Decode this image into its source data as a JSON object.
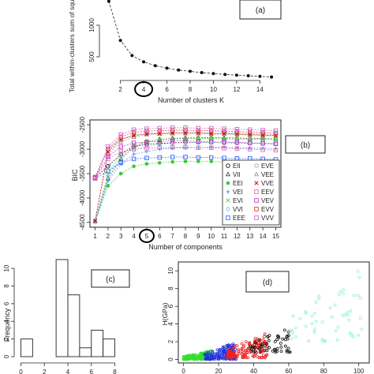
{
  "chart_data": [
    {
      "panel_label": "(a)",
      "type": "line",
      "xlabel": "Number of clusters K",
      "ylabel": "Total within-clusters sum of squares",
      "x": [
        1,
        2,
        3,
        4,
        5,
        6,
        7,
        8,
        9,
        10,
        11,
        12,
        13,
        14,
        15
      ],
      "values": [
        1380,
        760,
        520,
        420,
        360,
        320,
        290,
        270,
        250,
        235,
        220,
        210,
        200,
        190,
        180
      ],
      "xticks": [
        2,
        4,
        6,
        8,
        10,
        12,
        14
      ],
      "yticks": [
        500,
        1000
      ],
      "xlim": [
        0.6,
        15.4
      ],
      "ylim": [
        200,
        1400
      ],
      "highlighted_tick": 4
    },
    {
      "panel_label": "(b)",
      "type": "line",
      "xlabel": "Number of components",
      "ylabel": "BIC",
      "xlim": [
        0.6,
        15.4
      ],
      "ylim": [
        -4600,
        -2400
      ],
      "xticks": [
        1,
        2,
        3,
        4,
        5,
        6,
        7,
        8,
        9,
        10,
        11,
        12,
        13,
        14,
        15
      ],
      "yticks": [
        -4500,
        -4000,
        -3500,
        -3000,
        -2500
      ],
      "highlighted_tick": 5,
      "x": [
        1,
        2,
        3,
        4,
        5,
        6,
        7,
        8,
        9,
        10,
        11,
        12,
        13,
        14,
        15
      ],
      "series": [
        {
          "name": "EII",
          "color": "#111111",
          "marker": "circle",
          "values": [
            -3580,
            -3350,
            -3100,
            -2950,
            -2900,
            -2880,
            -2870,
            -2860,
            -2860,
            -2860,
            -2870,
            -2870,
            -2880,
            -2880,
            -2890
          ]
        },
        {
          "name": "VII",
          "color": "#444444",
          "marker": "triangle",
          "values": [
            -4480,
            -3600,
            -3200,
            -2950,
            -2850,
            -2800,
            -2780,
            -2770,
            -2770,
            -2760,
            -2770,
            -2770,
            -2780,
            -2780,
            -2790
          ]
        },
        {
          "name": "EEI",
          "color": "#33cc33",
          "marker": "dot",
          "values": [
            -4480,
            -3750,
            -3500,
            -3350,
            -3300,
            -3280,
            -3260,
            -3250,
            -3250,
            -3250,
            -3260,
            -3270,
            -3280,
            -3290,
            -3300
          ]
        },
        {
          "name": "VEI",
          "color": "#3399ff",
          "marker": "plus",
          "values": [
            -4500,
            -3650,
            -3300,
            -3100,
            -3050,
            -3000,
            -2980,
            -2970,
            -2970,
            -2960,
            -2960,
            -2970,
            -2980,
            -2980,
            -2990
          ]
        },
        {
          "name": "EVI",
          "color": "#55dd33",
          "marker": "cross",
          "values": [
            -4480,
            -3500,
            -3100,
            -2900,
            -2850,
            -2800,
            -2790,
            -2790,
            -2780,
            -2780,
            -2790,
            -2790,
            -2800,
            -2800,
            -2810
          ]
        },
        {
          "name": "VVI",
          "color": "#88ccee",
          "marker": "diamond",
          "values": [
            -4470,
            -3550,
            -3150,
            -3000,
            -2950,
            -2900,
            -2880,
            -2870,
            -2860,
            -2860,
            -2870,
            -2870,
            -2880,
            -2880,
            -2890
          ]
        },
        {
          "name": "EEE",
          "color": "#3366ff",
          "marker": "square",
          "values": [
            -3600,
            -3450,
            -3280,
            -3200,
            -3180,
            -3170,
            -3160,
            -3160,
            -3170,
            -3170,
            -3180,
            -3190,
            -3190,
            -3200,
            -3210
          ]
        },
        {
          "name": "EVE",
          "color": "#aaaaaa",
          "marker": "circle",
          "values": [
            -3600,
            -3000,
            -2800,
            -2700,
            -2680,
            -2660,
            -2650,
            -2650,
            -2650,
            -2660,
            -2660,
            -2670,
            -2680,
            -2690,
            -2700
          ]
        },
        {
          "name": "VEE",
          "color": "#999999",
          "marker": "triangle",
          "values": [
            -4480,
            -3100,
            -2850,
            -2750,
            -2700,
            -2690,
            -2680,
            -2680,
            -2680,
            -2690,
            -2690,
            -2700,
            -2710,
            -2720,
            -2730
          ]
        },
        {
          "name": "VVE",
          "color": "#cc0000",
          "marker": "cross",
          "values": [
            -4470,
            -3050,
            -2800,
            -2720,
            -2690,
            -2680,
            -2670,
            -2670,
            -2670,
            -2680,
            -2680,
            -2690,
            -2700,
            -2710,
            -2720
          ]
        },
        {
          "name": "EEV",
          "color": "#ee66aa",
          "marker": "square",
          "values": [
            -3600,
            -3200,
            -3050,
            -3000,
            -2980,
            -2970,
            -2960,
            -2960,
            -2970,
            -2970,
            -2980,
            -2990,
            -3000,
            -3010,
            -3020
          ]
        },
        {
          "name": "VEV",
          "color": "#cc33cc",
          "marker": "square",
          "values": [
            -3580,
            -3150,
            -2950,
            -2870,
            -2850,
            -2840,
            -2830,
            -2830,
            -2840,
            -2850,
            -2850,
            -2860,
            -2870,
            -2880,
            -2890
          ]
        },
        {
          "name": "EVV",
          "color": "#dd3333",
          "marker": "square",
          "values": [
            -3580,
            -3000,
            -2750,
            -2650,
            -2630,
            -2620,
            -2610,
            -2610,
            -2620,
            -2620,
            -2630,
            -2640,
            -2650,
            -2660,
            -2670
          ]
        },
        {
          "name": "VVV",
          "color": "#cc66cc",
          "marker": "square",
          "values": [
            -3570,
            -2950,
            -2700,
            -2600,
            -2580,
            -2570,
            -2560,
            -2560,
            -2570,
            -2570,
            -2580,
            -2590,
            -2600,
            -2610,
            -2620
          ]
        }
      ]
    },
    {
      "panel_label": "(c)",
      "type": "bar",
      "ylabel": "Frequency",
      "categories": [
        "0-1",
        "1-2",
        "2-3",
        "3-4",
        "4-5",
        "5-6",
        "6-7",
        "7-8"
      ],
      "bins": [
        [
          0,
          1
        ],
        [
          1,
          2
        ],
        [
          2,
          3
        ],
        [
          3,
          4
        ],
        [
          4,
          5
        ],
        [
          5,
          6
        ],
        [
          6,
          7
        ],
        [
          7,
          8
        ]
      ],
      "values": [
        2,
        0,
        0,
        11,
        7,
        1,
        3,
        2
      ],
      "xticks": [
        0,
        2,
        4,
        6,
        8
      ],
      "yticks": [
        0,
        2,
        4,
        6,
        8,
        10
      ],
      "xlim": [
        -0.3,
        8.3
      ],
      "ylim": [
        0,
        11.8
      ]
    },
    {
      "panel_label": "(d)",
      "type": "scatter",
      "xlabel": "",
      "ylabel": "H(GPa)",
      "xticks": [
        0,
        20,
        40,
        60,
        80,
        100
      ],
      "yticks": [
        0,
        2,
        4,
        6,
        8,
        10
      ],
      "xlim": [
        -3,
        106
      ],
      "ylim": [
        -0.4,
        11
      ],
      "clusters": [
        {
          "color": "#33dd33",
          "x_range": [
            0,
            16
          ],
          "y_range": [
            0,
            1.0
          ],
          "count": 170
        },
        {
          "color": "#2233dd",
          "x_range": [
            12,
            30
          ],
          "y_range": [
            0,
            2.0
          ],
          "count": 150
        },
        {
          "color": "#ee2222",
          "x_range": [
            25,
            48
          ],
          "y_range": [
            0.2,
            3.0
          ],
          "count": 140
        },
        {
          "color": "#111111",
          "x_range": [
            38,
            62
          ],
          "y_range": [
            0.8,
            3.8
          ],
          "count": 55
        },
        {
          "color": "#99eedd",
          "x_range": [
            60,
            102
          ],
          "y_range": [
            2.0,
            10.5
          ],
          "count": 55
        }
      ]
    }
  ]
}
